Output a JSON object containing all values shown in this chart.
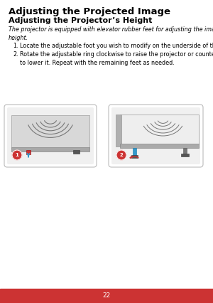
{
  "title": "Adjusting the Projected Image",
  "subtitle": "Adjusting the Projector’s Height",
  "italic_text": "The projector is equipped with elevator rubber feet for adjusting the image\nheight.",
  "item1": "Locate the adjustable foot you wish to modify on the underside of the projector.",
  "item2": "Rotate the adjustable ring clockwise to raise the projector or counter clockwise\nto lower it. Repeat with the remaining feet as needed.",
  "page_number": "22",
  "footer_color": "#cc3333",
  "footer_text_color": "#ffffff",
  "title_color": "#000000",
  "bg_color": "#ffffff",
  "title_fontsize": 9.5,
  "subtitle_fontsize": 8.0,
  "body_fontsize": 5.8,
  "page_num_fontsize": 6.5
}
